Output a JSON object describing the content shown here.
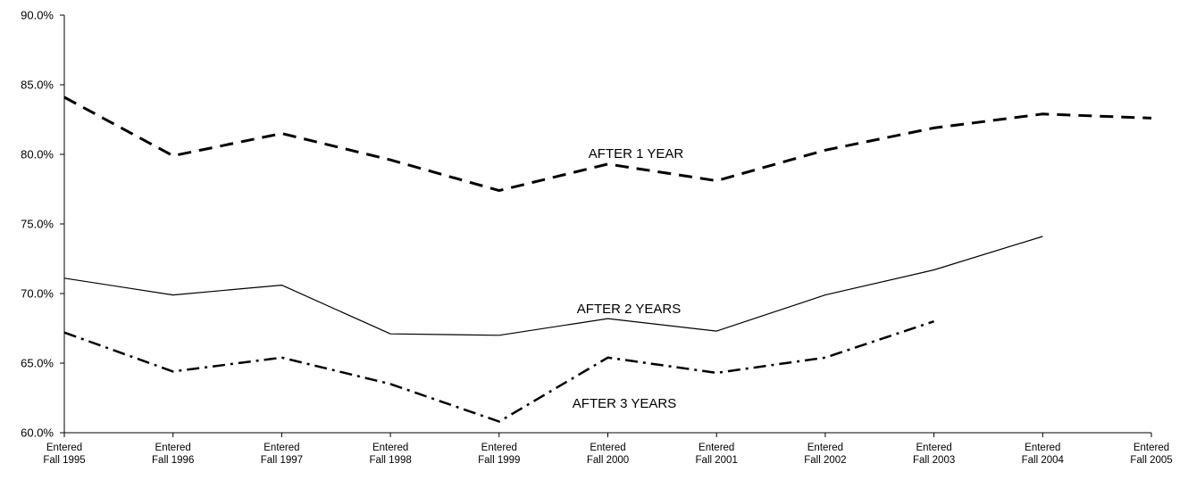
{
  "chart_data": {
    "type": "line",
    "x": [
      "Entered Fall 1995",
      "Entered Fall 1996",
      "Entered Fall 1997",
      "Entered Fall 1998",
      "Entered Fall 1999",
      "Entered Fall 2000",
      "Entered Fall 2001",
      "Entered Fall 2002",
      "Entered Fall 2003",
      "Entered Fall 2004",
      "Entered Fall 2005"
    ],
    "x_tick_lines": [
      [
        "Entered",
        "Fall 1995"
      ],
      [
        "Entered",
        "Fall 1996"
      ],
      [
        "Entered",
        "Fall 1997"
      ],
      [
        "Entered",
        "Fall 1998"
      ],
      [
        "Entered",
        "Fall 1999"
      ],
      [
        "Entered",
        "Fall 2000"
      ],
      [
        "Entered",
        "Fall 2001"
      ],
      [
        "Entered",
        "Fall 2002"
      ],
      [
        "Entered",
        "Fall 2003"
      ],
      [
        "Entered",
        "Fall 2004"
      ],
      [
        "Entered",
        "Fall 2005"
      ]
    ],
    "y_ticks": [
      "60.0%",
      "65.0%",
      "70.0%",
      "75.0%",
      "80.0%",
      "85.0%",
      "90.0%"
    ],
    "ylim": [
      60,
      90
    ],
    "grid": false,
    "series": [
      {
        "name": "AFTER 1 YEAR",
        "style": "dashed",
        "values": [
          84.1,
          79.9,
          81.5,
          79.6,
          77.4,
          79.3,
          78.1,
          80.3,
          81.9,
          82.9,
          82.6
        ]
      },
      {
        "name": "AFTER 2 YEARS",
        "style": "solid",
        "values": [
          71.1,
          69.9,
          70.6,
          67.1,
          67.0,
          68.2,
          67.3,
          69.9,
          71.7,
          74.1,
          null
        ]
      },
      {
        "name": "AFTER 3 YEARS",
        "style": "dash-dot",
        "values": [
          67.2,
          64.4,
          65.4,
          63.5,
          60.8,
          65.4,
          64.3,
          65.4,
          68.0,
          null,
          null
        ]
      }
    ]
  }
}
